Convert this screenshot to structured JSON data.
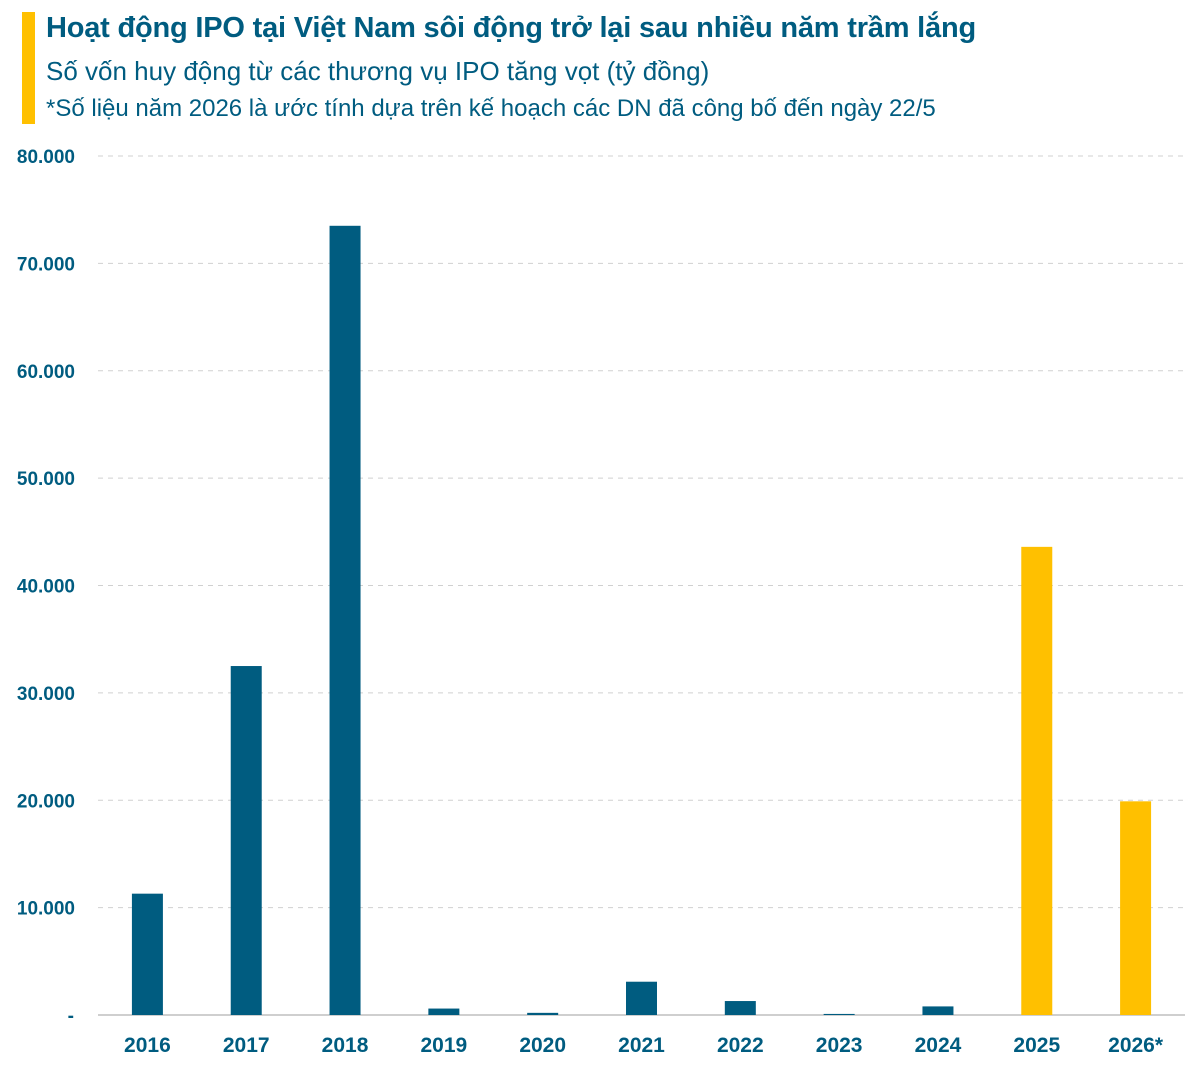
{
  "header": {
    "title": "Hoạt động IPO tại Việt Nam sôi động trở lại sau nhiều năm trầm lắng",
    "subtitle": "Số vốn huy động từ các thương vụ IPO tăng vọt (tỷ đồng)",
    "note": "*Số liệu năm 2026 là ước tính dựa trên kế hoạch các DN đã công bố đến ngày 22/5"
  },
  "colors": {
    "accent": "#FFC000",
    "text": "#005C80",
    "bar_primary": "#005C80",
    "bar_highlight": "#FFC000",
    "grid": "#D0D0D0"
  },
  "chart_data": {
    "type": "bar",
    "title": "Hoạt động IPO tại Việt Nam sôi động trở lại sau nhiều năm trầm lắng",
    "subtitle": "Số vốn huy động từ các thương vụ IPO tăng vọt (tỷ đồng)",
    "xlabel": "",
    "ylabel": "",
    "categories": [
      "2016",
      "2017",
      "2018",
      "2019",
      "2020",
      "2021",
      "2022",
      "2023",
      "2024",
      "2025",
      "2026*"
    ],
    "values": [
      11300,
      32500,
      73500,
      600,
      200,
      3100,
      1300,
      100,
      800,
      43600,
      19900
    ],
    "highlight": [
      false,
      false,
      false,
      false,
      false,
      false,
      false,
      false,
      false,
      true,
      true
    ],
    "ylim": [
      0,
      80000
    ],
    "yticks": [
      0,
      10000,
      20000,
      30000,
      40000,
      50000,
      60000,
      70000,
      80000
    ],
    "ytick_labels": [
      "-",
      "10.000",
      "20.000",
      "30.000",
      "40.000",
      "50.000",
      "60.000",
      "70.000",
      "80.000"
    ],
    "grid": true,
    "legend": "none"
  }
}
